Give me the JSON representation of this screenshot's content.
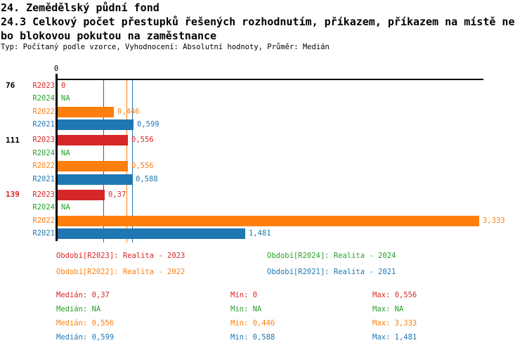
{
  "header": {
    "line1": "24. Zemědělský půdní fond",
    "line2": "24.3 Celkový počet přestupků řešených rozhodnutím, příkazem, příkazem na místě ne",
    "line3": "bo blokovou pokutou na zaměstnance",
    "meta": "Typ: Počítaný podle vzorce, Vyhodnocení: Absolutní hodnoty, Průměr: Medián"
  },
  "chart_data": {
    "type": "bar",
    "orientation": "horizontal",
    "xlim": [
      0,
      3.333
    ],
    "x_tick_labels": [
      "0"
    ],
    "grid": false,
    "series": [
      {
        "id": "R2023",
        "color": "#d62728",
        "legend": "Období[R2023]: Realita - 2023"
      },
      {
        "id": "R2024",
        "color": "#2ca02c",
        "legend": "Období[R2024]: Realita - 2024"
      },
      {
        "id": "R2022",
        "color": "#ff7f0e",
        "legend": "Období[R2022]: Realita - 2022"
      },
      {
        "id": "R2021",
        "color": "#1f77b4",
        "legend": "Období[R2021]: Realita - 2021"
      }
    ],
    "groups": [
      {
        "label": "76",
        "highlighted": false,
        "rows": [
          {
            "series": "R2023",
            "value": 0,
            "value_label": "0"
          },
          {
            "series": "R2024",
            "value": null,
            "value_label": "NA"
          },
          {
            "series": "R2022",
            "value": 0.446,
            "value_label": "0,446"
          },
          {
            "series": "R2021",
            "value": 0.599,
            "value_label": "0,599"
          }
        ]
      },
      {
        "label": "111",
        "highlighted": false,
        "rows": [
          {
            "series": "R2023",
            "value": 0.556,
            "value_label": "0,556"
          },
          {
            "series": "R2024",
            "value": null,
            "value_label": "NA"
          },
          {
            "series": "R2022",
            "value": 0.556,
            "value_label": "0,556"
          },
          {
            "series": "R2021",
            "value": 0.588,
            "value_label": "0,588"
          }
        ]
      },
      {
        "label": "139",
        "highlighted": true,
        "rows": [
          {
            "series": "R2023",
            "value": 0.37,
            "value_label": "0,37"
          },
          {
            "series": "R2024",
            "value": null,
            "value_label": "NA"
          },
          {
            "series": "R2022",
            "value": 3.333,
            "value_label": "3,333"
          },
          {
            "series": "R2021",
            "value": 1.481,
            "value_label": "1,481"
          }
        ]
      }
    ],
    "median_lines": [
      {
        "series": "R2023",
        "value": 0.37
      },
      {
        "series": "R2022",
        "value": 0.556
      },
      {
        "series": "R2021",
        "value": 0.599
      }
    ]
  },
  "legend": {
    "items": [
      {
        "series": "R2023",
        "label": "Období[R2023]: Realita - 2023"
      },
      {
        "series": "R2024",
        "label": "Období[R2024]: Realita - 2024"
      },
      {
        "series": "R2022",
        "label": "Období[R2022]: Realita - 2022"
      },
      {
        "series": "R2021",
        "label": "Období[R2021]: Realita - 2021"
      }
    ]
  },
  "stats": {
    "rows": [
      {
        "series": "R2023",
        "median": "Medián: 0,37",
        "min": "Min: 0",
        "max": "Max: 0,556"
      },
      {
        "series": "R2024",
        "median": "Medián: NA",
        "min": "Min: NA",
        "max": "Max: NA"
      },
      {
        "series": "R2022",
        "median": "Medián: 0,556",
        "min": "Min: 0,446",
        "max": "Max: 3,333"
      },
      {
        "series": "R2021",
        "median": "Medián: 0,599",
        "min": "Min: 0,588",
        "max": "Max: 1,481"
      }
    ]
  }
}
